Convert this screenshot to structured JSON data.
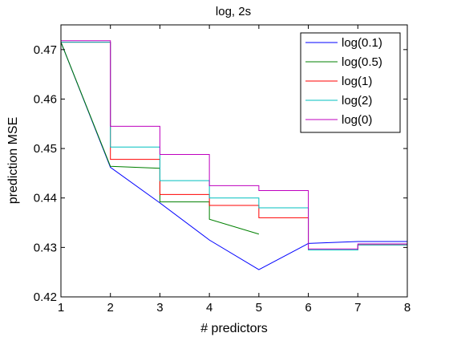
{
  "chart_data": {
    "type": "line",
    "title": "log, 2s",
    "xlabel": "# predictors",
    "ylabel": "prediction MSE",
    "xlim": [
      1,
      8
    ],
    "ylim": [
      0.42,
      0.475
    ],
    "xticks": [
      1,
      2,
      3,
      4,
      5,
      6,
      7,
      8
    ],
    "yticks": [
      0.42,
      0.43,
      0.44,
      0.45,
      0.46,
      0.47
    ],
    "ytick_labels": [
      "0.42",
      "0.43",
      "0.44",
      "0.45",
      "0.46",
      "0.47"
    ],
    "grid": false,
    "legend_position": "top-right",
    "series": [
      {
        "name": "log(0.1)",
        "color": "#0000ff",
        "step": false,
        "x": [
          1,
          2,
          3,
          4,
          5,
          6,
          7,
          8
        ],
        "y": [
          0.4715,
          0.4462,
          0.439,
          0.4315,
          0.4255,
          0.4308,
          0.4312,
          0.4312
        ]
      },
      {
        "name": "log(0.5)",
        "color": "#008000",
        "step": false,
        "x": [
          1,
          2,
          3,
          3,
          4,
          4,
          5
        ],
        "y": [
          0.4715,
          0.4464,
          0.446,
          0.4392,
          0.4392,
          0.4357,
          0.4327
        ]
      },
      {
        "name": "log(1)",
        "color": "#ff0000",
        "step": true,
        "x": [
          1,
          2,
          3,
          4,
          5,
          6,
          7,
          8
        ],
        "y": [
          0.4715,
          0.4478,
          0.4407,
          0.4385,
          0.436,
          0.4295,
          0.4305,
          0.4305
        ]
      },
      {
        "name": "log(2)",
        "color": "#00bfbf",
        "step": true,
        "x": [
          1,
          2,
          3,
          4,
          5,
          6,
          7,
          8
        ],
        "y": [
          0.4715,
          0.4503,
          0.4435,
          0.44,
          0.438,
          0.4295,
          0.4305,
          0.4305
        ]
      },
      {
        "name": "log(0)",
        "color": "#bf00bf",
        "step": true,
        "x": [
          1,
          2,
          3,
          4,
          5,
          6,
          7,
          8
        ],
        "y": [
          0.4718,
          0.4545,
          0.4488,
          0.4425,
          0.4415,
          0.4297,
          0.4307,
          0.4307
        ]
      }
    ]
  }
}
